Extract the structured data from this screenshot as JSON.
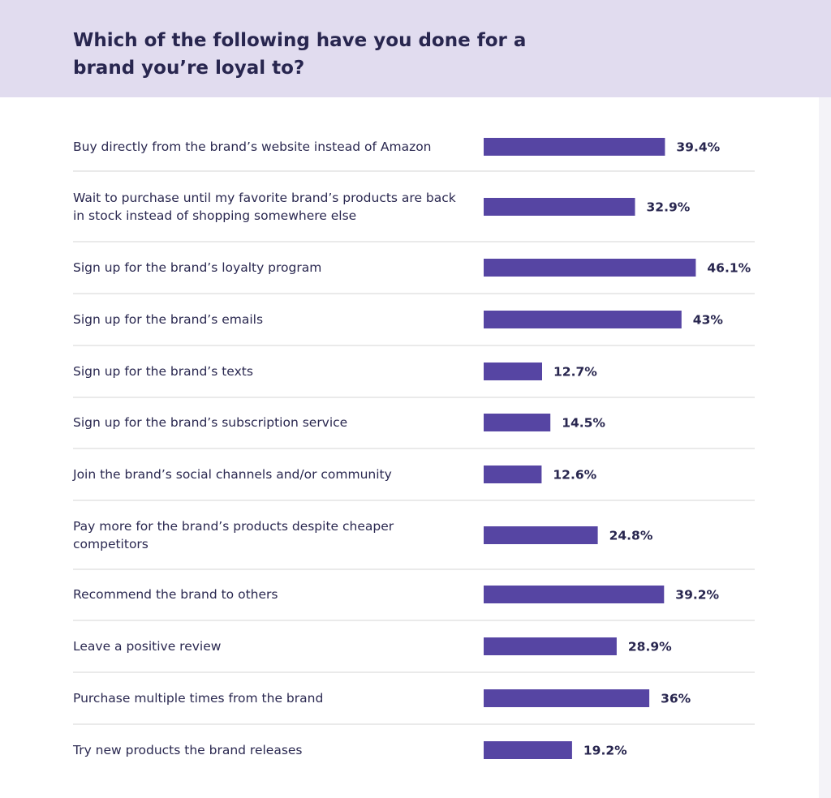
{
  "title": "Which of the following have you done for a brand you’re loyal to?",
  "colors": {
    "bar": "#5645a3",
    "header_bg": "#e1dcef",
    "divider": "#d6d6d6",
    "text": "#28264f"
  },
  "chart_data": {
    "type": "bar",
    "orientation": "horizontal",
    "title": "Which of the following have you done for a brand you’re loyal to?",
    "value_unit": "%",
    "xlim": [
      0,
      50
    ],
    "grid": false,
    "categories": [
      "Buy directly from the brand’s website instead of Amazon",
      "Wait to purchase until my favorite brand’s products are back in stock instead of shopping somewhere else",
      "Sign up for the brand’s loyalty program",
      "Sign up for the brand’s emails",
      "Sign up for the brand’s texts",
      "Sign up for the brand’s subscription service",
      "Join the brand’s social channels and/or community",
      "Pay more for the brand’s products despite cheaper competitors",
      "Recommend the brand to others",
      "Leave a positive review",
      "Purchase multiple times from the brand",
      "Try new products the brand releases"
    ],
    "values": [
      39.4,
      32.9,
      46.1,
      43,
      12.7,
      14.5,
      12.6,
      24.8,
      39.2,
      28.9,
      36,
      19.2
    ],
    "value_labels": [
      "39.4%",
      "32.9%",
      "46.1%",
      "43%",
      "12.7%",
      "14.5%",
      "12.6%",
      "24.8%",
      "39.2%",
      "28.9%",
      "36%",
      "19.2%"
    ]
  }
}
